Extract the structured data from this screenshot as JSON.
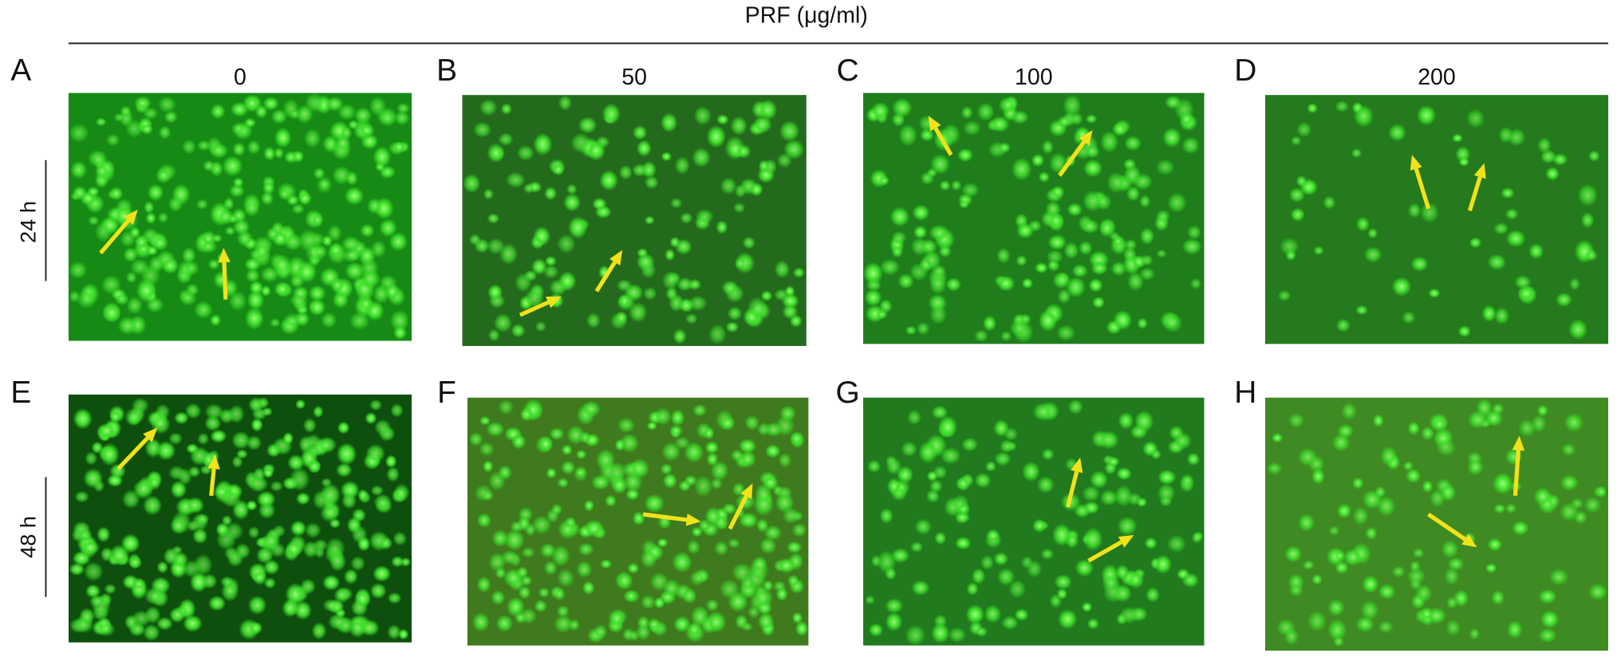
{
  "header": {
    "title": "PRF (μg/ml)"
  },
  "columns": [
    "0",
    "50",
    "100",
    "200"
  ],
  "rows": [
    "24 h",
    "48 h"
  ],
  "panels": [
    "A",
    "B",
    "C",
    "D",
    "E",
    "F",
    "G",
    "H"
  ]
}
